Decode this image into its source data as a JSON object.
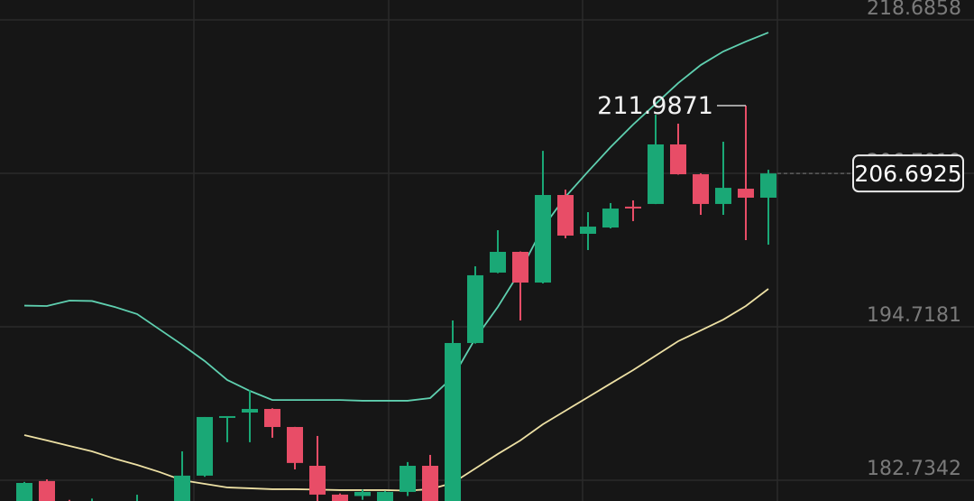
{
  "chart_data": {
    "type": "candlestick",
    "categories": [
      null,
      null,
      null,
      null,
      null,
      null,
      null,
      null,
      null,
      null,
      null,
      null,
      null,
      null,
      null,
      null,
      null,
      null,
      null,
      null,
      null,
      null,
      null,
      null,
      null,
      null,
      null,
      null,
      null,
      null,
      null,
      null,
      null,
      null
    ],
    "open": [
      180.5,
      182.67,
      181.0,
      180.5,
      180.9,
      180.4,
      180.9,
      180.8,
      183.09,
      187.67,
      188.02,
      188.3,
      186.89,
      183.86,
      181.61,
      181.5,
      180.6,
      181.82,
      183.86,
      180.9,
      193.45,
      198.95,
      200.57,
      198.17,
      205.01,
      201.98,
      202.47,
      204.1,
      204.31,
      208.96,
      206.63,
      204.31,
      205.5,
      204.8
    ],
    "high": [
      182.6,
      182.8,
      181.2,
      181.3,
      181.1,
      181.6,
      181.0,
      184.99,
      187.67,
      187.74,
      189.78,
      188.35,
      186.9,
      186.19,
      181.7,
      182.0,
      181.9,
      184.15,
      184.71,
      195.21,
      199.44,
      202.26,
      200.6,
      208.46,
      205.43,
      203.67,
      204.38,
      204.59,
      211.28,
      210.58,
      206.7,
      209.17,
      211.9871,
      206.98
    ],
    "low": [
      180.0,
      180.2,
      180.4,
      180.2,
      180.3,
      180.2,
      180.1,
      180.5,
      183.0,
      185.7,
      185.7,
      186.05,
      183.58,
      180.9,
      180.5,
      181.2,
      180.3,
      181.5,
      180.4,
      180.5,
      193.4,
      198.9,
      195.21,
      198.1,
      201.63,
      200.71,
      202.4,
      202.97,
      204.3,
      206.6,
      203.46,
      203.46,
      201.49,
      201.13
    ],
    "close": [
      182.52,
      180.6,
      180.7,
      180.9,
      180.6,
      180.9,
      180.5,
      183.09,
      187.67,
      187.74,
      188.3,
      186.89,
      184.08,
      181.61,
      180.9,
      181.82,
      181.82,
      183.86,
      180.9,
      193.45,
      198.74,
      200.57,
      198.17,
      205.01,
      201.84,
      202.54,
      203.95,
      204.02,
      208.96,
      206.63,
      204.31,
      205.57,
      204.8,
      206.6925
    ],
    "up_color": "#1aa876",
    "down_color": "#e84d67",
    "bands": [
      {
        "color": "#5fd0b0",
        "values": [
          196.37,
          196.34,
          196.76,
          196.73,
          196.27,
          195.71,
          194.51,
          193.31,
          192.04,
          190.56,
          189.71,
          189.0,
          189.0,
          189.0,
          189.0,
          188.94,
          188.94,
          188.94,
          189.15,
          190.77,
          193.8,
          196.27,
          199.09,
          202.47,
          204.87,
          206.84,
          208.75,
          210.51,
          212.13,
          213.75,
          215.16,
          216.22,
          216.99,
          217.7
        ]
      },
      {
        "color": "#ede0a4",
        "values": [
          186.26,
          185.84,
          185.41,
          184.99,
          184.42,
          183.93,
          183.37,
          182.73,
          182.45,
          182.17,
          182.1,
          182.03,
          182.03,
          182.0,
          181.96,
          181.96,
          181.96,
          181.92,
          182.03,
          182.52,
          183.65,
          184.78,
          185.84,
          187.1,
          188.16,
          189.22,
          190.28,
          191.33,
          192.46,
          193.59,
          194.43,
          195.28,
          196.34,
          197.68
        ]
      }
    ],
    "ylim": [
      181.11,
      220.24
    ],
    "yticks": [
      218.6858,
      206.7019,
      194.7181,
      182.7342
    ],
    "grid": true
  }
}
